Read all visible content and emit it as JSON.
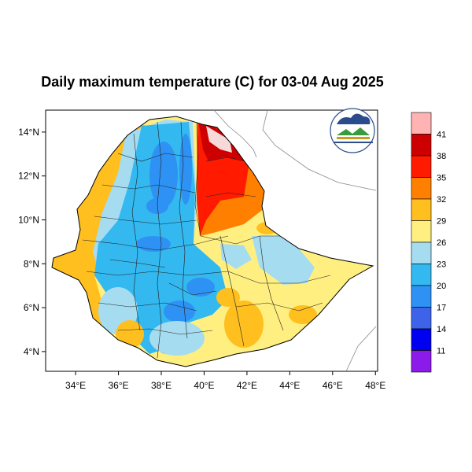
{
  "title": "Daily maximum temperature (C) for 03-04 Aug 2025",
  "x_axis": {
    "ticks": [
      {
        "value": 34,
        "label": "34°E"
      },
      {
        "value": 36,
        "label": "36°E"
      },
      {
        "value": 38,
        "label": "38°E"
      },
      {
        "value": 40,
        "label": "40°E"
      },
      {
        "value": 42,
        "label": "42°E"
      },
      {
        "value": 44,
        "label": "44°E"
      },
      {
        "value": 46,
        "label": "46°E"
      },
      {
        "value": 48,
        "label": "48°E"
      }
    ]
  },
  "y_axis": {
    "ticks": [
      {
        "value": 4,
        "label": "4°N"
      },
      {
        "value": 6,
        "label": "6°N"
      },
      {
        "value": 8,
        "label": "8°N"
      },
      {
        "value": 10,
        "label": "10°N"
      },
      {
        "value": 12,
        "label": "12°N"
      },
      {
        "value": 14,
        "label": "14°N"
      }
    ]
  },
  "colorbar": {
    "labels": [
      "41",
      "38",
      "35",
      "32",
      "29",
      "26",
      "23",
      "20",
      "17",
      "14",
      "11"
    ],
    "colors": [
      "#ffb3b3",
      "#cc0000",
      "#ff1a00",
      "#ff8000",
      "#ffbf1f",
      "#ffef80",
      "#a6dcf0",
      "#33b8f0",
      "#2e92f5",
      "#3d63e8",
      "#0000f0",
      "#8c1aeb"
    ]
  },
  "palette": {
    "very_hot": "#cc0000",
    "hot": "#ff1a00",
    "warm_orange": "#ff8000",
    "orange": "#ffbf1f",
    "yellow": "#ffef80",
    "light_blue": "#a6dcf0",
    "blue": "#33b8f0",
    "deep_blue": "#2e92f5"
  },
  "logo": {
    "icon": "ethiopian-meteorology-institute-logo"
  }
}
